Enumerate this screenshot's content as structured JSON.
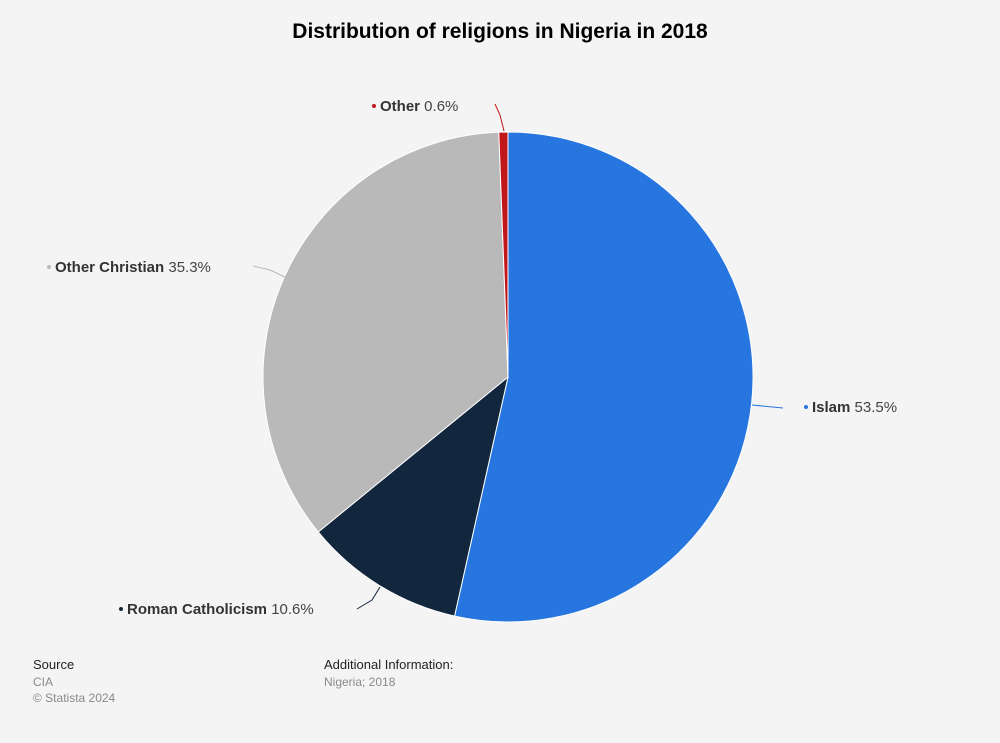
{
  "title": "Distribution of religions in Nigeria in 2018",
  "chart_data": {
    "type": "pie",
    "title": "Distribution of religions in Nigeria in 2018",
    "unit": "%",
    "slices": [
      {
        "label": "Islam",
        "value": 53.5,
        "display": "53.5%",
        "color": "#2776df"
      },
      {
        "label": "Roman Catholicism",
        "value": 10.6,
        "display": "10.6%",
        "color": "#12263e"
      },
      {
        "label": "Other Christian",
        "value": 35.3,
        "display": "35.3%",
        "color": "#b9b9b9"
      },
      {
        "label": "Other",
        "value": 0.6,
        "display": "0.6%",
        "color": "#c0171b"
      }
    ]
  },
  "footer": {
    "source_heading": "Source",
    "source_text": "CIA",
    "copyright": "© Statista 2024",
    "additional_heading": "Additional Information:",
    "additional_text": "Nigeria; 2018"
  }
}
